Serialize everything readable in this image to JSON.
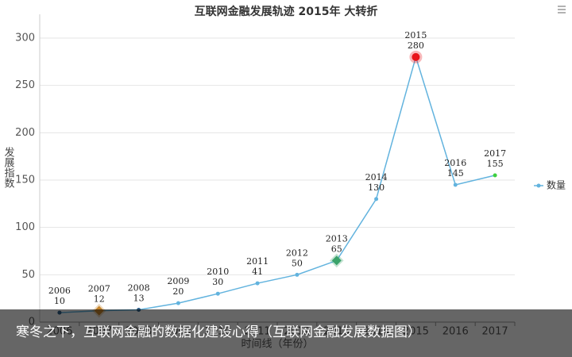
{
  "chart_data": {
    "type": "line",
    "title": "互联网金融发展轨迹 2015年 大转折",
    "y_label": "发展指数",
    "x_label": "时间线（年份）",
    "categories": [
      "2006",
      "2007",
      "2008",
      "2009",
      "2010",
      "2011",
      "2012",
      "2013",
      "2014",
      "2015",
      "2016",
      "2017"
    ],
    "series": [
      {
        "name": "数量",
        "color": "#62b3de",
        "values": [
          10,
          12,
          13,
          20,
          30,
          41,
          50,
          65,
          130,
          280,
          145,
          155
        ],
        "marker_colors": [
          "#2f5f8a",
          "#c7862c",
          "#2f5f8a",
          "#62b3de",
          "#62b3de",
          "#62b3de",
          "#62b3de",
          "#3aa36a",
          "#62b3de",
          "#e8151b",
          "#62b3de",
          "#3fcf3f"
        ],
        "marker_shapes": [
          "circle",
          "diamond",
          "circle",
          "circle",
          "circle",
          "circle",
          "circle",
          "diamond",
          "circle",
          "circle",
          "circle",
          "circle"
        ]
      }
    ],
    "ylim": [
      0,
      300
    ],
    "yticks": [
      0,
      50,
      100,
      150,
      200,
      250,
      300
    ],
    "grid": true,
    "legend": "right",
    "caption": "寒冬之下，互联网金融的数据化建设心得（互联网金融发展数据图）"
  }
}
